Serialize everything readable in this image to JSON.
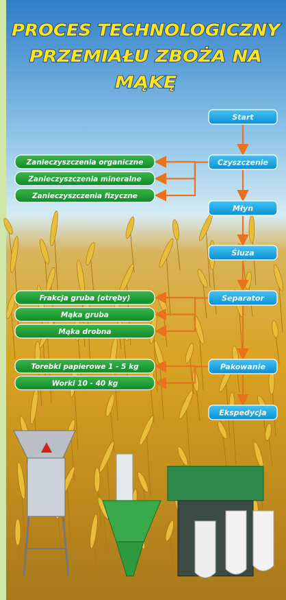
{
  "title": [
    "PROCES TECHNOLOGICZNY",
    "PRZEMIAŁU ZBOŻA NA",
    "MĄKĘ"
  ],
  "steps": [
    {
      "label": "Start"
    },
    {
      "label": "Czyszczenie",
      "outputs": [
        "Zanieczyszczenia organiczne",
        "Zanieczyszczenia mineralne",
        "Zanieczyszczenia fizyczne"
      ]
    },
    {
      "label": "Młyn"
    },
    {
      "label": "Śluza"
    },
    {
      "label": "Separator",
      "outputs": [
        "Frakcja gruba (otręby)",
        "Mąka gruba",
        "Mąka drobna"
      ]
    },
    {
      "label": "Pakowanie",
      "outputs": [
        "Torebki papierowe 1 - 5 kg",
        "Worki 10 - 40 kg"
      ]
    },
    {
      "label": "Ekspedycja"
    }
  ]
}
